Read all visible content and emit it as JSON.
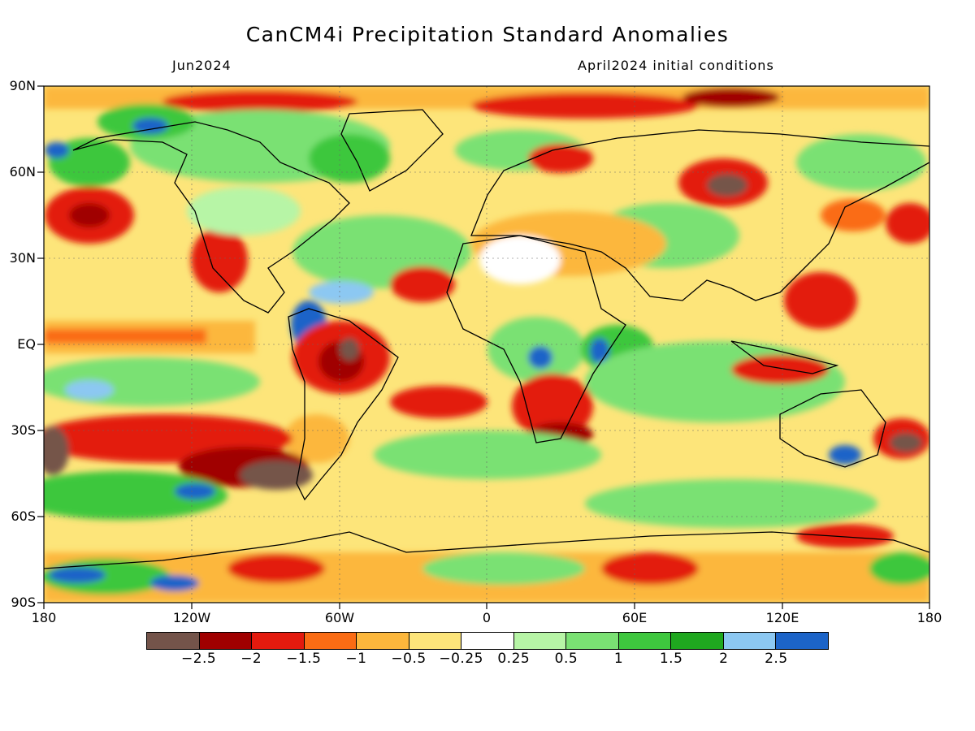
{
  "header": {
    "title": "CanCM4i Precipitation Standard Anomalies",
    "valid_month": "Jun2024",
    "init": "April2024 initial conditions"
  },
  "axes": {
    "lat_labels": [
      "90N",
      "60N",
      "30N",
      "EQ",
      "30S",
      "60S",
      "90S"
    ],
    "lon_labels": [
      "180",
      "120W",
      "60W",
      "0",
      "60E",
      "120E",
      "180"
    ]
  },
  "colorbar": {
    "colors": [
      "#74544a",
      "#a00000",
      "#e31a0e",
      "#fa6c14",
      "#fcb73c",
      "#fde57a",
      "#ffffff",
      "#b7f5a6",
      "#7ae173",
      "#3ec73e",
      "#1fa81f",
      "#8cc8f2",
      "#1c64c8"
    ],
    "labels": [
      "−2.5",
      "−2",
      "−1.5",
      "−1",
      "−0.5",
      "−0.25",
      "0.25",
      "0.5",
      "1",
      "1.5",
      "2",
      "2.5"
    ]
  },
  "map": {
    "lon_range": [
      -180,
      180
    ],
    "lat_range": [
      -90,
      90
    ],
    "background": "#fde57a"
  }
}
